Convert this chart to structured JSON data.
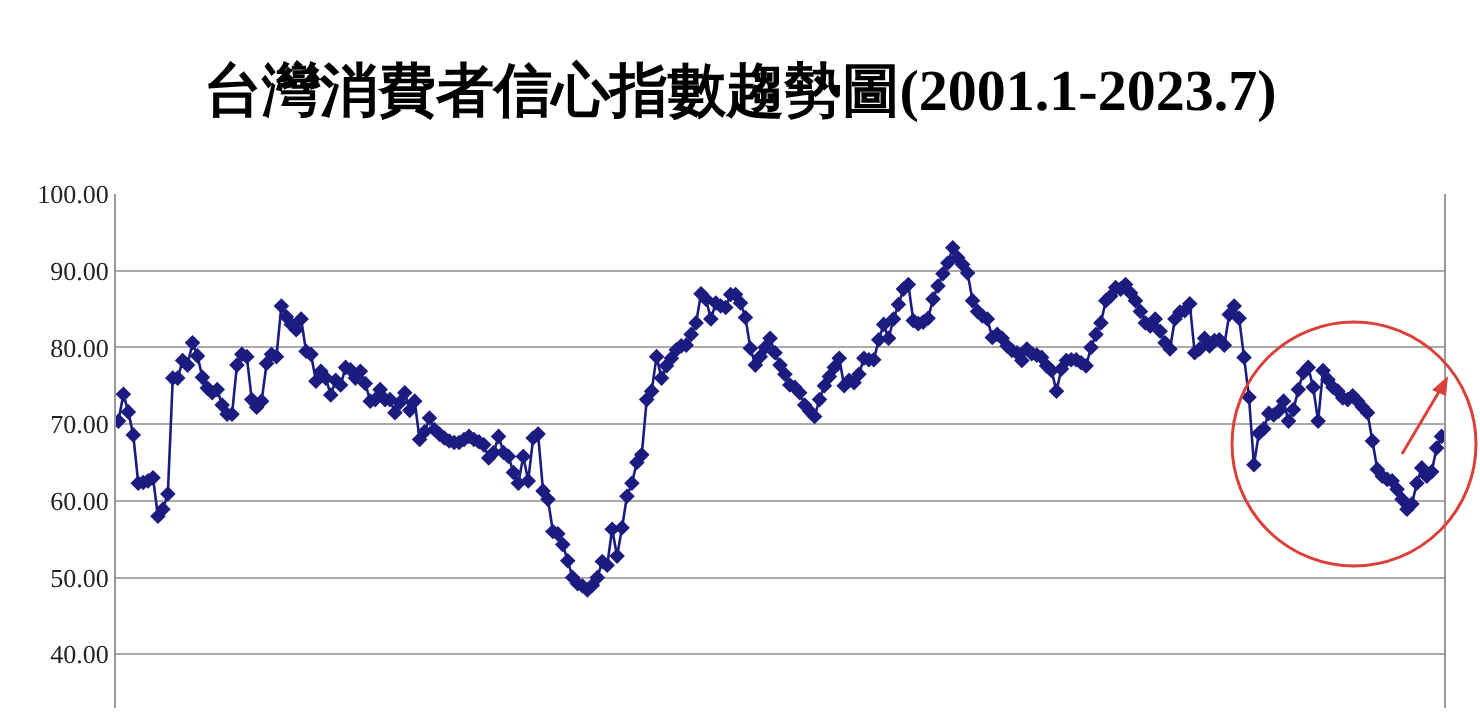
{
  "chart_data": {
    "type": "line",
    "title": "台灣消費者信心指數趨勢圖(2001.1-2023.7)",
    "categories": [
      null,
      null,
      null,
      null,
      null,
      null,
      null,
      null,
      null,
      null,
      null,
      null,
      null,
      null,
      null,
      null,
      null,
      null,
      null,
      null,
      null,
      null,
      null,
      null,
      null,
      null,
      null,
      null,
      null,
      null,
      null,
      null,
      null,
      null,
      null,
      null,
      null,
      null,
      null,
      null,
      null,
      null,
      null,
      null,
      null,
      null,
      null,
      null,
      null,
      null,
      null,
      null,
      null,
      null,
      null,
      null,
      null,
      null,
      null,
      null,
      null,
      null,
      null,
      null,
      null,
      null,
      null,
      null,
      null,
      null,
      null,
      null,
      null,
      null,
      null,
      null,
      null,
      null,
      null,
      null,
      null,
      null,
      null,
      null,
      null,
      null,
      null,
      null,
      null,
      null,
      null,
      null,
      null,
      null,
      null,
      null,
      null,
      null,
      null,
      null,
      null,
      null,
      null,
      null,
      null,
      null,
      null,
      null,
      null,
      null,
      null,
      null,
      null,
      null,
      null,
      null,
      null,
      null,
      null,
      null,
      null,
      null,
      null,
      null,
      null,
      null,
      null,
      null,
      null,
      null,
      null,
      null,
      null,
      null,
      null,
      null,
      null,
      null,
      null,
      null,
      null,
      null,
      null,
      null,
      null,
      null,
      null,
      null,
      null,
      null,
      null,
      null,
      null,
      null,
      null,
      null,
      null,
      null,
      null,
      null,
      null,
      null,
      null,
      null,
      null,
      null,
      null,
      null,
      null,
      null,
      null,
      null,
      null,
      null,
      null,
      null,
      null,
      null,
      null,
      null,
      null,
      null,
      null,
      null,
      null,
      null,
      null,
      null,
      null,
      null,
      null,
      null,
      null,
      null,
      null,
      null,
      null,
      null,
      null,
      null,
      null,
      null,
      null,
      null,
      null,
      null,
      null,
      null,
      null,
      null,
      null,
      null,
      null,
      null,
      null,
      null,
      null,
      null,
      null,
      null,
      null,
      null,
      null,
      null,
      null,
      null,
      null,
      null,
      null,
      null,
      null,
      null,
      null,
      null,
      null,
      null,
      null,
      null,
      null,
      null,
      null,
      null,
      null,
      null,
      null,
      null,
      null,
      null,
      null,
      null,
      null,
      null,
      null,
      null,
      null,
      null,
      null,
      null,
      null,
      null,
      null,
      null,
      null,
      null,
      null,
      null,
      null,
      null,
      null
    ],
    "series": [
      {
        "color": "#1c1c80",
        "values": [
          70.4,
          73.9,
          71.6,
          68.6,
          62.3,
          62.4,
          62.6,
          63,
          58,
          58.9,
          60.9,
          76,
          76,
          78.3,
          77.7,
          80.6,
          78.9,
          76.1,
          74.7,
          74.1,
          74.5,
          72.5,
          71.3,
          71.3,
          77.7,
          79.1,
          78.8,
          73.2,
          72.2,
          73,
          77.9,
          79.1,
          78.8,
          85.4,
          84,
          83,
          82.3,
          83.7,
          79.5,
          79.1,
          75.6,
          76.9,
          76,
          73.8,
          75.7,
          75.1,
          77.4,
          77.1,
          76,
          76.9,
          75.3,
          73,
          73.2,
          74.5,
          73.2,
          73.2,
          71.5,
          72.8,
          74.1,
          71.8,
          73,
          68,
          69,
          70.8,
          69.3,
          68.7,
          68.2,
          67.8,
          67.6,
          67.6,
          68,
          68.4,
          68,
          67.7,
          67.3,
          65.6,
          66.3,
          68.4,
          66.3,
          65.8,
          63.7,
          62.3,
          65.8,
          62.6,
          68.2,
          68.7,
          61.3,
          60.2,
          56,
          55.7,
          54.3,
          52.2,
          50,
          49.2,
          48.9,
          48.4,
          49,
          50,
          52.1,
          51.6,
          56.3,
          52.8,
          56.5,
          60.6,
          62.3,
          65,
          66,
          73.2,
          74.3,
          78.8,
          76,
          77.6,
          78.6,
          79.7,
          80.2,
          80.3,
          81.7,
          83.2,
          87,
          86.3,
          83.7,
          85.8,
          85.4,
          85.2,
          86.9,
          86.9,
          85.8,
          83.9,
          79.9,
          77.7,
          78.8,
          80,
          81.2,
          79.3,
          77.7,
          76.5,
          75.1,
          74.8,
          74.1,
          72.5,
          71.7,
          71,
          73.2,
          75,
          76.2,
          77.4,
          78.6,
          75,
          75.7,
          75.4,
          76.5,
          78.6,
          78.4,
          78.4,
          81,
          83,
          81.2,
          83.7,
          85.6,
          87.6,
          88.2,
          83.5,
          83.1,
          83.3,
          83.8,
          86.3,
          88,
          89.6,
          91,
          93,
          91.7,
          90.8,
          89.7,
          86.1,
          84.7,
          84.1,
          83.7,
          81.3,
          81.7,
          81.2,
          80.2,
          79.6,
          79.3,
          78.3,
          79.8,
          79.2,
          79,
          78.7,
          77.6,
          77,
          74.3,
          77.2,
          78.3,
          78.4,
          78.4,
          78,
          77.6,
          80,
          81.7,
          83.2,
          86.1,
          86.7,
          87.8,
          87.6,
          88.2,
          87.1,
          86.1,
          84.7,
          83.2,
          82.8,
          83.7,
          82.1,
          80.6,
          79.8,
          83.7,
          84.6,
          84.8,
          85.7,
          79.3,
          79.8,
          81.2,
          80.2,
          80.9,
          81,
          80.3,
          84.3,
          85.4,
          83.8,
          78.7,
          73.5,
          64.7,
          68.8,
          69.4,
          71.4,
          71.2,
          71.7,
          73,
          70.4,
          71.9,
          74.5,
          76.7,
          77.4,
          74.8,
          70.4,
          77,
          75.8,
          74.8,
          74.3,
          73.4,
          73.2,
          73.7,
          73,
          72.2,
          71.5,
          67.8,
          64.1,
          63.2,
          62.8,
          62.6,
          61.5,
          60.2,
          58.9,
          59.6,
          62.3,
          64.3,
          63.2,
          63.8,
          66.9,
          68.4
        ]
      }
    ],
    "ylim": [
      33,
      100
    ],
    "yticks": [
      {
        "value": 40,
        "label": "40.00"
      },
      {
        "value": 50,
        "label": "50.00"
      },
      {
        "value": 60,
        "label": "60.00"
      },
      {
        "value": 70,
        "label": "70.00"
      },
      {
        "value": 80,
        "label": "80.00"
      },
      {
        "value": 90,
        "label": "90.00"
      },
      {
        "value": 100,
        "label": "100.00"
      }
    ],
    "grid": "y",
    "marker": "diamond",
    "line_style": "solid",
    "tick_labels": "y"
  }
}
